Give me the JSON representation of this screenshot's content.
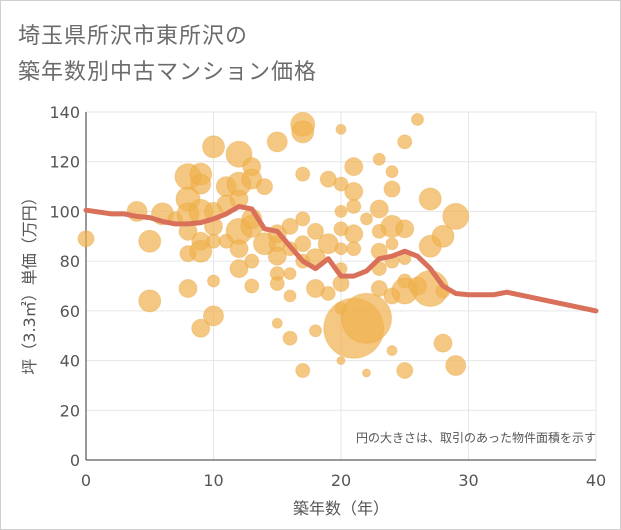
{
  "title_line1": "埼玉県所沢市東所沢の",
  "title_line2": "築年数別中古マンション価格",
  "note": "円の大きさは、取引のあった物件面積を示す",
  "colors": {
    "bubble": "#f0b04d",
    "line": "#d9715a",
    "grid": "#e6e6e6"
  },
  "chart_data": {
    "type": "scatter",
    "xlabel": "築年数（年）",
    "ylabel": "坪（3.3㎡）単価（万円）",
    "xlim": [
      0,
      40
    ],
    "ylim": [
      0,
      140
    ],
    "x_ticks": [
      "0",
      "10",
      "20",
      "30",
      "40"
    ],
    "y_ticks": [
      "0",
      "20",
      "40",
      "60",
      "80",
      "100",
      "120",
      "140"
    ],
    "grid": true,
    "bubbles": [
      [
        0,
        89,
        8
      ],
      [
        4,
        100,
        10
      ],
      [
        5,
        88,
        11
      ],
      [
        5,
        64,
        11
      ],
      [
        6,
        99,
        11
      ],
      [
        7,
        97,
        7
      ],
      [
        8,
        114,
        13
      ],
      [
        8,
        105,
        12
      ],
      [
        8,
        99,
        11
      ],
      [
        8,
        92,
        9
      ],
      [
        8,
        83,
        8
      ],
      [
        8,
        69,
        9
      ],
      [
        9,
        115,
        11
      ],
      [
        9,
        111,
        10
      ],
      [
        9,
        100,
        12
      ],
      [
        9,
        88,
        9
      ],
      [
        9,
        84,
        11
      ],
      [
        9,
        53,
        9
      ],
      [
        10,
        126,
        11
      ],
      [
        10,
        100,
        9
      ],
      [
        10,
        94,
        9
      ],
      [
        10,
        88,
        7
      ],
      [
        10,
        72,
        6
      ],
      [
        10,
        58,
        10
      ],
      [
        11,
        110,
        10
      ],
      [
        11,
        103,
        9
      ],
      [
        11,
        88,
        7
      ],
      [
        12,
        123,
        13
      ],
      [
        12,
        111,
        12
      ],
      [
        12,
        105,
        9
      ],
      [
        12,
        92,
        13
      ],
      [
        12,
        85,
        9
      ],
      [
        12,
        77,
        9
      ],
      [
        13,
        118,
        9
      ],
      [
        13,
        113,
        10
      ],
      [
        13,
        97,
        10
      ],
      [
        13,
        94,
        11
      ],
      [
        13,
        80,
        7
      ],
      [
        13,
        70,
        7
      ],
      [
        14,
        110,
        8
      ],
      [
        14,
        87,
        11
      ],
      [
        15,
        128,
        10
      ],
      [
        15,
        91,
        9
      ],
      [
        15,
        87,
        8
      ],
      [
        15,
        82,
        9
      ],
      [
        15,
        75,
        7
      ],
      [
        15,
        71,
        7
      ],
      [
        15,
        55,
        5
      ],
      [
        16,
        94,
        8
      ],
      [
        16,
        85,
        7
      ],
      [
        16,
        75,
        6
      ],
      [
        16,
        66,
        6
      ],
      [
        16,
        49,
        7
      ],
      [
        17,
        135,
        12
      ],
      [
        17,
        132,
        11
      ],
      [
        17,
        115,
        7
      ],
      [
        17,
        97,
        7
      ],
      [
        17,
        87,
        8
      ],
      [
        17,
        80,
        7
      ],
      [
        17,
        36,
        7
      ],
      [
        18,
        92,
        8
      ],
      [
        18,
        81,
        10
      ],
      [
        18,
        69,
        9
      ],
      [
        18,
        52,
        6
      ],
      [
        19,
        113,
        8
      ],
      [
        19,
        87,
        10
      ],
      [
        19,
        67,
        7
      ],
      [
        20,
        133,
        5
      ],
      [
        20,
        111,
        7
      ],
      [
        20,
        100,
        6
      ],
      [
        20,
        93,
        7
      ],
      [
        20,
        85,
        6
      ],
      [
        20,
        77,
        6
      ],
      [
        20,
        71,
        8
      ],
      [
        20,
        61,
        6
      ],
      [
        20,
        40,
        4
      ],
      [
        21,
        118,
        9
      ],
      [
        21,
        108,
        9
      ],
      [
        21,
        102,
        7
      ],
      [
        21,
        91,
        9
      ],
      [
        21,
        85,
        7
      ],
      [
        21,
        53,
        30
      ],
      [
        22,
        57,
        25
      ],
      [
        22,
        35,
        4
      ],
      [
        22,
        97,
        6
      ],
      [
        23,
        121,
        6
      ],
      [
        23,
        101,
        9
      ],
      [
        23,
        92,
        7
      ],
      [
        23,
        84,
        8
      ],
      [
        23,
        77,
        7
      ],
      [
        23,
        69,
        8
      ],
      [
        24,
        116,
        6
      ],
      [
        24,
        109,
        8
      ],
      [
        24,
        94,
        11
      ],
      [
        24,
        87,
        6
      ],
      [
        24,
        80,
        7
      ],
      [
        24,
        66,
        8
      ],
      [
        24,
        44,
        5
      ],
      [
        25,
        128,
        7
      ],
      [
        25,
        93,
        9
      ],
      [
        25,
        81,
        6
      ],
      [
        25,
        72,
        7
      ],
      [
        25,
        68,
        13
      ],
      [
        25,
        36,
        8
      ],
      [
        26,
        137,
        6
      ],
      [
        26,
        70,
        9
      ],
      [
        27,
        105,
        11
      ],
      [
        27,
        86,
        11
      ],
      [
        27,
        69,
        18
      ],
      [
        28,
        90,
        11
      ],
      [
        28,
        68,
        7
      ],
      [
        28,
        47,
        9
      ],
      [
        29,
        98,
        13
      ],
      [
        29,
        38,
        10
      ]
    ],
    "series": [
      {
        "x": [
          0,
          2,
          3,
          4,
          5,
          6,
          7,
          8,
          9,
          10,
          11,
          12,
          13,
          14,
          15,
          16,
          17,
          18,
          19,
          20,
          21,
          22,
          23,
          24,
          25,
          26,
          27,
          28,
          29,
          30,
          31,
          32,
          33,
          40
        ],
        "y": [
          100.5,
          99,
          99,
          98,
          97.5,
          96,
          95,
          95,
          95.5,
          97,
          99,
          102,
          101,
          93,
          92,
          86,
          80,
          77,
          81,
          74,
          74,
          76,
          81,
          82,
          84,
          82,
          77,
          70,
          67,
          66.5,
          66.5,
          66.5,
          67.5,
          60
        ]
      }
    ]
  }
}
